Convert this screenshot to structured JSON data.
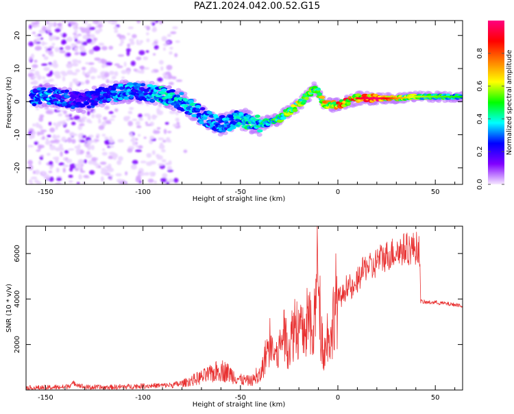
{
  "title": "PAZ1.2024.042.00.52.G15",
  "chart_data": [
    {
      "type": "heatmap",
      "xlabel": "Height of straight line (km)",
      "ylabel": "Frequency (Hz)",
      "xlim": [
        -160,
        64
      ],
      "ylim": [
        -25,
        24.5
      ],
      "xticks": [
        -150,
        -100,
        -50,
        0,
        50
      ],
      "xtick_labels": [
        "-150",
        "-100",
        "-50",
        "0",
        "50"
      ],
      "yticks": [
        -20,
        -10,
        0,
        10,
        20
      ],
      "ytick_labels": [
        "-20",
        "-10",
        "0",
        "10",
        "20"
      ],
      "colorbar": {
        "label": "Normalized spectral amplitude",
        "ticks": [
          0.0,
          0.2,
          0.4,
          0.6,
          0.8
        ],
        "tick_labels": [
          "0.0",
          "0.2",
          "0.4",
          "0.6",
          "0.8"
        ],
        "range": [
          0,
          1
        ],
        "colormap": "gist_rainbow_r",
        "stops": [
          "#f6e8ff",
          "#8000ff",
          "#0000ff",
          "#00ffff",
          "#00ff00",
          "#ffff00",
          "#ff8000",
          "#ff0000",
          "#ff0080"
        ]
      },
      "ridge": {
        "x": [
          -157,
          -150,
          -140,
          -130,
          -120,
          -110,
          -100,
          -90,
          -85,
          -80,
          -75,
          -70,
          -65,
          -60,
          -55,
          -50,
          -45,
          -40,
          -35,
          -30,
          -25,
          -20,
          -15,
          -12,
          -10,
          -8,
          -5,
          0,
          5,
          10,
          15,
          20,
          30,
          40,
          50,
          64
        ],
        "y": [
          1,
          2,
          1,
          0,
          2,
          3,
          3,
          2,
          1,
          0,
          -2,
          -4,
          -6,
          -7,
          -6,
          -5,
          -6,
          -7,
          -6,
          -5,
          -3,
          -1,
          2,
          4,
          3,
          0,
          -1,
          -1,
          0,
          1,
          1,
          1,
          1,
          1.5,
          1.5,
          1.5
        ],
        "amplitude": [
          0.3,
          0.35,
          0.3,
          0.25,
          0.3,
          0.35,
          0.35,
          0.4,
          0.4,
          0.4,
          0.4,
          0.35,
          0.35,
          0.35,
          0.35,
          0.4,
          0.45,
          0.4,
          0.45,
          0.55,
          0.6,
          0.65,
          0.6,
          0.5,
          0.6,
          0.7,
          0.75,
          0.8,
          0.85,
          0.85,
          0.9,
          0.95,
          0.7,
          0.55,
          0.5,
          0.45
        ]
      }
    },
    {
      "type": "line",
      "xlabel": "Height of straight line (km)",
      "ylabel": "SNR (10 * v/v)",
      "xlim": [
        -160,
        64
      ],
      "ylim": [
        0,
        7200
      ],
      "xticks": [
        -150,
        -100,
        -50,
        0,
        50
      ],
      "xtick_labels": [
        "-150",
        "-100",
        "-50",
        "0",
        "50"
      ],
      "yticks": [
        2000,
        4000,
        6000
      ],
      "ytick_labels": [
        "2000",
        "4000",
        "6000"
      ],
      "color": "#e83030",
      "series": [
        {
          "x": [
            -160,
            -150,
            -140,
            -135,
            -130,
            -120,
            -110,
            -100,
            -90,
            -85,
            -80,
            -75,
            -70,
            -65,
            -60,
            -55,
            -50,
            -45,
            -40,
            -38,
            -35,
            -32,
            -30,
            -28,
            -25,
            -22,
            -20,
            -18,
            -15,
            -13,
            -11,
            -10,
            -9,
            -7,
            -5,
            -3,
            -2,
            0,
            3,
            5,
            8,
            10,
            12,
            15,
            18,
            20,
            25,
            30,
            35,
            40,
            41,
            42,
            42.5,
            45,
            50,
            55,
            60,
            64
          ],
          "values": [
            80,
            100,
            130,
            300,
            120,
            110,
            140,
            180,
            200,
            220,
            280,
            420,
            560,
            700,
            900,
            700,
            450,
            400,
            550,
            1200,
            2200,
            1400,
            1800,
            2500,
            1900,
            3000,
            2800,
            2400,
            3200,
            2100,
            4200,
            6400,
            2900,
            1600,
            2600,
            2200,
            3900,
            4000,
            4200,
            4700,
            4300,
            4800,
            5100,
            5500,
            5300,
            5700,
            5900,
            6100,
            6200,
            6250,
            6200,
            6150,
            3900,
            3850,
            3850,
            3800,
            3750,
            3700
          ]
        }
      ]
    }
  ]
}
